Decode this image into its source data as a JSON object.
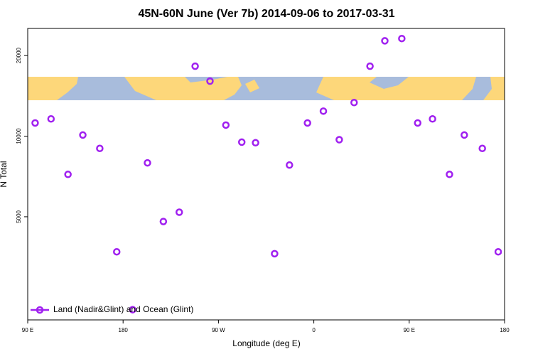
{
  "chart_data": {
    "type": "scatter",
    "title": "45N-60N June (Ver 7b)   2014-09-06 to 2017-03-31",
    "xlabel": "Longitude (deg E)",
    "ylabel": "N Total",
    "x": [
      97,
      112,
      128,
      142,
      158,
      174,
      189,
      203,
      218,
      233,
      248,
      262,
      277,
      292,
      305,
      323,
      337,
      354,
      369,
      384,
      398,
      413,
      427,
      443,
      458,
      472,
      488,
      502,
      519,
      534
    ],
    "series": [
      {
        "name": "Land (Nadir&Glint) and Ocean (Glint)",
        "color": "#a020f0",
        "values": [
          11200,
          11600,
          7200,
          10100,
          9000,
          3700,
          2250,
          7950,
          4800,
          5200,
          18250,
          16050,
          11000,
          9500,
          9450,
          3640,
          7800,
          11200,
          12400,
          9700,
          13350,
          18250,
          22700,
          23150,
          11200,
          11600,
          7200,
          10100,
          9000,
          3700
        ]
      }
    ],
    "xlim": [
      90,
      540
    ],
    "xticks": [
      {
        "value": 90,
        "label": "90 E"
      },
      180,
      {
        "value": 270,
        "label": "90 W"
      },
      {
        "value": 360,
        "label": "0"
      },
      {
        "value": 450,
        "label": "90 E"
      },
      {
        "value": 540,
        "label": "180"
      }
    ],
    "ylim": [
      2060,
      25250
    ],
    "yticks": [
      5000,
      10000,
      20000
    ],
    "log_y": true,
    "legend": "lower left"
  }
}
